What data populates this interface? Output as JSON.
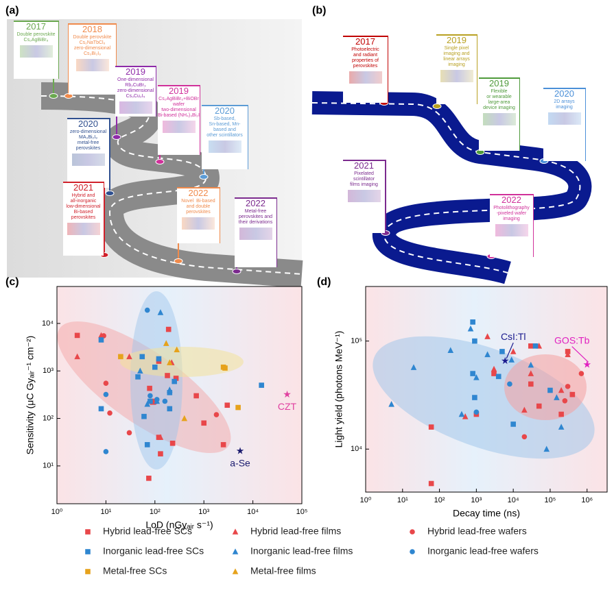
{
  "panels": {
    "a": {
      "label": "(a)",
      "milestones": [
        {
          "year": "2017",
          "lines": [
            "Double perovskite",
            "Cs₂AgBiBr₆"
          ],
          "color": "#6aa84f"
        },
        {
          "year": "2018",
          "lines": [
            "Double perovskite",
            "Cs₂NaTbCl₆",
            "zero-dimensional",
            "Cs₃Bi₂I₉"
          ],
          "color": "#f08a4b"
        },
        {
          "year": "2019",
          "lines": [
            "One-dimensional",
            "Rb₂CuBr₃",
            "zero-dimensional",
            "Cs₃Cu₂I₅"
          ],
          "color": "#8e2aa8"
        },
        {
          "year": "2019",
          "lines": [
            "Cs₂AgBiBr₆+BiOBr",
            "wafer",
            "two-dimensional",
            "Bi-based (NH₄)₃Bi₂I₉"
          ],
          "color": "#d0309a"
        },
        {
          "year": "2020",
          "lines": [
            "Sb-based,",
            "Sn-based, Mn-",
            "based and",
            "other scintillators"
          ],
          "color": "#5b9bd5"
        },
        {
          "year": "2020",
          "lines": [
            "zero-dimensional",
            "MA₃Bi₂I₉",
            "metal-free",
            "perovskites"
          ],
          "color": "#2f4f8f"
        },
        {
          "year": "2021",
          "lines": [
            "Hybrid and",
            "all-inorganic",
            "low-dimensional",
            "Bi-based",
            "perovskites"
          ],
          "color": "#d0202a"
        },
        {
          "year": "2022",
          "lines": [
            "Novel  Bi-based",
            "and double",
            "perovskites"
          ],
          "color": "#f08a4b"
        },
        {
          "year": "2022",
          "lines": [
            "Metal-free",
            "perovskites and",
            "their derivations"
          ],
          "color": "#7b2a8e"
        }
      ]
    },
    "b": {
      "label": "(b)",
      "milestones": [
        {
          "year": "2017",
          "lines": [
            "Photoelectric",
            "and radiant",
            "properties of",
            "perovskites"
          ],
          "color": "#c00000"
        },
        {
          "year": "2019",
          "lines": [
            "Single pixel",
            "imaging and",
            "linear arrays",
            "imaging"
          ],
          "color": "#b8a020"
        },
        {
          "year": "2019",
          "lines": [
            "Flexible",
            "or wearable",
            "large-area",
            "device imaging"
          ],
          "color": "#4e9a3a"
        },
        {
          "year": "2020",
          "lines": [
            "2D arrays",
            "imaging"
          ],
          "color": "#4a8fd8"
        },
        {
          "year": "2021",
          "lines": [
            "Pixelated",
            "scintillator",
            "films imaging"
          ],
          "color": "#7b2a8e"
        },
        {
          "year": "2022",
          "lines": [
            "Photolithography",
            "-pixeled wafer",
            "imaging"
          ],
          "color": "#d0309a"
        }
      ]
    },
    "c": {
      "label": "(c)"
    },
    "d": {
      "label": "(d)"
    }
  },
  "legend": [
    {
      "name": "Hybrid lead-free SCs",
      "color": "#e8474a",
      "marker": "square"
    },
    {
      "name": "Hybrid lead-free films",
      "color": "#e8474a",
      "marker": "triangle"
    },
    {
      "name": "Hybrid lead-free wafers",
      "color": "#e8474a",
      "marker": "circle"
    },
    {
      "name": "Inorganic lead-free SCs",
      "color": "#2f86d0",
      "marker": "square"
    },
    {
      "name": "Inorganic lead-free films",
      "color": "#2f86d0",
      "marker": "triangle"
    },
    {
      "name": "Inorganic lead-free wafers",
      "color": "#2f86d0",
      "marker": "circle"
    },
    {
      "name": "Metal-free  SCs",
      "color": "#e6a21c",
      "marker": "square"
    },
    {
      "name": "Metal-free films",
      "color": "#e6a21c",
      "marker": "triangle"
    }
  ],
  "chart_data": [
    {
      "type": "scatter",
      "xlabel": "LoD (nGyₐᵢᵣ s⁻¹)",
      "ylabel": "Sensitivity (μC Gyₐᵢᵣ⁻¹ cm⁻²)",
      "xlog": true,
      "ylog": true,
      "xlim": [
        1,
        100000
      ],
      "ylim": [
        1.6,
        60000
      ],
      "xticks": [
        {
          "value": 1,
          "label": "10⁰"
        },
        {
          "value": 10,
          "label": "10¹"
        },
        {
          "value": 100,
          "label": "10²"
        },
        {
          "value": 1000,
          "label": "10³"
        },
        {
          "value": 10000,
          "label": "10⁴"
        },
        {
          "value": 100000,
          "label": "10⁵"
        }
      ],
      "yticks": [
        {
          "value": 10,
          "label": "10¹"
        },
        {
          "value": 100,
          "label": "10²"
        },
        {
          "value": 1000,
          "label": "10³"
        },
        {
          "value": 10000,
          "label": "10⁴"
        }
      ],
      "series": [
        {
          "x": [
            2.6,
            78,
            90,
            120,
            130,
            180,
            190,
            230,
            270,
            700,
            1000,
            2500,
            3000,
            75,
            120
          ],
          "values": [
            5600,
            430,
            230,
            40,
            18,
            800,
            7500,
            30,
            700,
            300,
            80,
            28,
            190,
            5.5,
            1600
          ]
        },
        {
          "x": [
            2.6,
            8,
            30,
            130,
            220,
            90
          ],
          "values": [
            2000,
            5600,
            2000,
            40,
            1500,
            220
          ]
        },
        {
          "x": [
            9,
            10,
            12,
            30,
            100,
            1800
          ],
          "values": [
            5500,
            550,
            130,
            50,
            220,
            120
          ]
        },
        {
          "x": [
            8,
            8,
            45,
            55,
            60,
            70,
            100,
            120,
            200,
            200,
            250,
            15000,
            80
          ],
          "values": [
            4500,
            160,
            750,
            2000,
            110,
            28,
            1200,
            1800,
            350,
            160,
            600,
            500,
            230
          ]
        },
        {
          "x": [
            50,
            70,
            130,
            110,
            200
          ],
          "values": [
            1000,
            200,
            17000,
            230,
            400
          ]
        },
        {
          "x": [
            10,
            10,
            70,
            80,
            110,
            160
          ],
          "values": [
            320,
            20,
            19000,
            300,
            250,
            230
          ]
        },
        {
          "x": [
            20,
            2700,
            5000,
            2500
          ],
          "values": [
            2000,
            1150,
            170,
            1200
          ]
        },
        {
          "x": [
            170,
            280,
            200,
            400
          ],
          "values": [
            3800,
            2800,
            1500,
            100
          ]
        }
      ],
      "annotations": [
        {
          "text": "CZT",
          "x": 50000,
          "y": 310,
          "color": "#e040a0"
        },
        {
          "text": "a-Se",
          "x": 5500,
          "y": 20,
          "color": "#1a1a6e"
        }
      ]
    },
    {
      "type": "scatter",
      "xlabel": "Decay time (ns)",
      "ylabel": "Light yield (photons MeV⁻¹)",
      "xlog": true,
      "ylog": true,
      "xlim": [
        1,
        3500000
      ],
      "ylim": [
        4000,
        320000
      ],
      "xticks": [
        {
          "value": 1,
          "label": "10⁰"
        },
        {
          "value": 10,
          "label": "10¹"
        },
        {
          "value": 100,
          "label": "10²"
        },
        {
          "value": 1000,
          "label": "10³"
        },
        {
          "value": 10000,
          "label": "10⁴"
        },
        {
          "value": 100000,
          "label": "10⁵"
        },
        {
          "value": 1000000,
          "label": "10⁶"
        }
      ],
      "yticks": [
        {
          "value": 10000,
          "label": "10⁴"
        },
        {
          "value": 100000,
          "label": "10⁵"
        }
      ],
      "series": [
        {
          "x": [
            60,
            60,
            3000,
            1000,
            30000,
            300000,
            400000,
            200000,
            50000,
            30000
          ],
          "values": [
            16000,
            4800,
            50000,
            21000,
            90000,
            80000,
            32000,
            21000,
            25000,
            40000
          ]
        },
        {
          "x": [
            2000,
            3000,
            10000,
            20000,
            30000,
            300000,
            200000,
            500,
            50000
          ],
          "values": [
            110000,
            55000,
            80000,
            23000,
            50000,
            75000,
            35000,
            20000,
            90000
          ]
        },
        {
          "x": [
            20000,
            300000,
            250000,
            700000
          ],
          "values": [
            13000,
            38000,
            28000,
            50000
          ]
        },
        {
          "x": [
            800,
            900,
            800,
            900,
            5000,
            40000,
            10000,
            4000,
            100000
          ],
          "values": [
            150000,
            100000,
            50000,
            30000,
            80000,
            90000,
            17000,
            47000,
            35000
          ]
        },
        {
          "x": [
            5,
            20,
            200,
            700,
            400,
            1000,
            2000,
            30000,
            80000,
            150000,
            200000,
            9000
          ],
          "values": [
            26000,
            57000,
            82000,
            130000,
            21000,
            46000,
            75000,
            60000,
            10000,
            30000,
            16000,
            67000
          ]
        },
        {
          "x": [
            1000,
            8000
          ],
          "values": [
            22000,
            40000
          ]
        },
        {
          "x": [],
          "values": []
        },
        {
          "x": [],
          "values": []
        }
      ],
      "annotations": [
        {
          "text": "CsI:Tl",
          "x": 6000,
          "y": 65000,
          "color": "#1a1a8e"
        },
        {
          "text": "GOS:Tb",
          "x": 1000000,
          "y": 60000,
          "color": "#e020c0"
        }
      ]
    }
  ]
}
